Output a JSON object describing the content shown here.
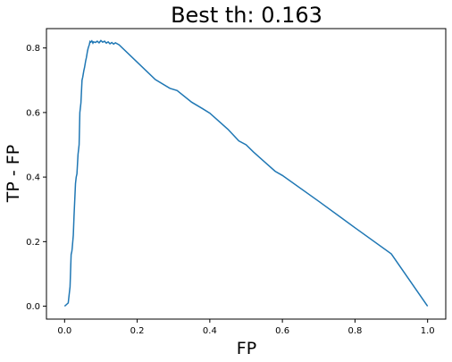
{
  "chart_data": {
    "type": "line",
    "title": "Best th: 0.163",
    "xlabel": "FP",
    "ylabel": "TP - FP",
    "xlim": [
      -0.05,
      1.05
    ],
    "ylim": [
      -0.04,
      0.86
    ],
    "xticks": [
      0.0,
      0.2,
      0.4,
      0.6,
      0.8,
      1.0
    ],
    "yticks": [
      0.0,
      0.2,
      0.4,
      0.6,
      0.8
    ],
    "xtick_labels": [
      "0.0",
      "0.2",
      "0.4",
      "0.6",
      "0.8",
      "1.0"
    ],
    "ytick_labels": [
      "0.0",
      "0.2",
      "0.4",
      "0.6",
      "0.8"
    ],
    "grid": false,
    "legend": "none",
    "series": [
      {
        "color": "#1f77b4",
        "x": [
          0.0,
          0.005,
          0.01,
          0.012,
          0.015,
          0.018,
          0.02,
          0.021,
          0.024,
          0.026,
          0.028,
          0.03,
          0.032,
          0.034,
          0.037,
          0.04,
          0.042,
          0.045,
          0.048,
          0.05,
          0.053,
          0.055,
          0.058,
          0.06,
          0.063,
          0.065,
          0.068,
          0.07,
          0.072,
          0.075,
          0.078,
          0.08,
          0.085,
          0.09,
          0.095,
          0.1,
          0.105,
          0.11,
          0.115,
          0.12,
          0.125,
          0.13,
          0.135,
          0.14,
          0.15,
          0.2,
          0.25,
          0.29,
          0.31,
          0.35,
          0.38,
          0.4,
          0.42,
          0.45,
          0.48,
          0.5,
          0.52,
          0.55,
          0.58,
          0.6,
          0.7,
          0.8,
          0.9,
          1.0
        ],
        "values": [
          0.0,
          0.005,
          0.01,
          0.03,
          0.06,
          0.16,
          0.17,
          0.18,
          0.22,
          0.28,
          0.33,
          0.38,
          0.4,
          0.41,
          0.47,
          0.5,
          0.6,
          0.63,
          0.7,
          0.71,
          0.73,
          0.74,
          0.76,
          0.77,
          0.79,
          0.8,
          0.81,
          0.82,
          0.818,
          0.822,
          0.815,
          0.819,
          0.817,
          0.821,
          0.816,
          0.823,
          0.818,
          0.821,
          0.815,
          0.819,
          0.813,
          0.817,
          0.812,
          0.816,
          0.81,
          0.756,
          0.702,
          0.675,
          0.668,
          0.632,
          0.612,
          0.598,
          0.578,
          0.548,
          0.512,
          0.5,
          0.478,
          0.448,
          0.418,
          0.405,
          0.325,
          0.243,
          0.162,
          0.0
        ]
      }
    ]
  }
}
